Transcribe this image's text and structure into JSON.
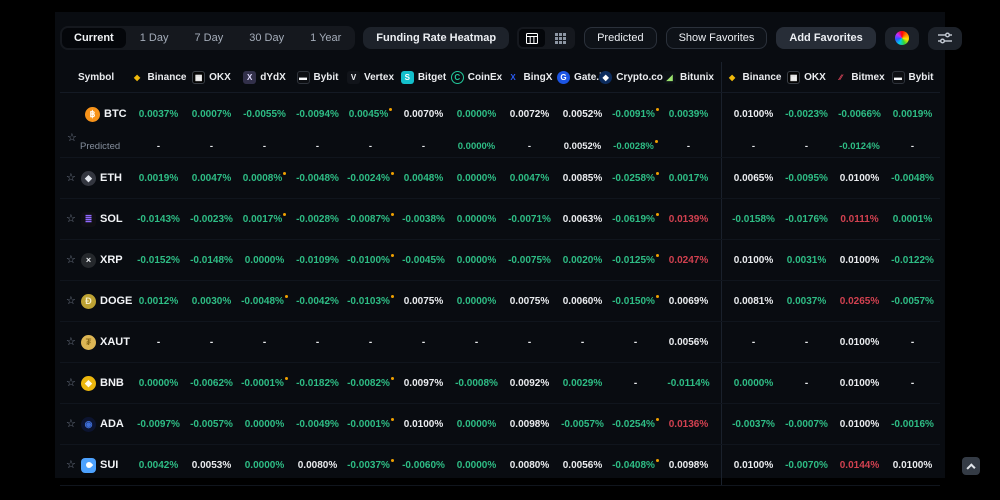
{
  "toolbar": {
    "tabs": [
      "Current",
      "1 Day",
      "7 Day",
      "30 Day",
      "1 Year"
    ],
    "active_tab": "Current",
    "heatmap_button": "Funding Rate Heatmap",
    "predicted_button": "Predicted",
    "show_favorites_button": "Show Favorites",
    "add_favorites_button": "Add Favorites"
  },
  "colors": {
    "positive": "#2ebd85",
    "negative": "#d24150",
    "neutral": "#eaecef",
    "marker": "#f0a000",
    "accent_yellow": "#F0B90B"
  },
  "table": {
    "symbol_header": "Symbol",
    "predicted_label": "Predicted",
    "exchange_groups": [
      [
        {
          "name": "Binance",
          "icon": {
            "ch": "◆",
            "fg": "#F0B90B"
          }
        },
        {
          "name": "OKX",
          "icon": {
            "ch": "▦",
            "fg": "#ffffff",
            "bg": "#050505",
            "border": "#3a3f46",
            "shape": "square"
          }
        },
        {
          "name": "dYdX",
          "icon": {
            "ch": "X",
            "fg": "#e2dcff",
            "bg": "#32304a",
            "shape": "square"
          }
        },
        {
          "name": "Bybit",
          "icon": {
            "ch": "▬",
            "fg": "#f6f7f9",
            "bg": "#0d0f13",
            "border": "#2e333b",
            "shape": "square"
          }
        },
        {
          "name": "Vertex",
          "icon": {
            "ch": "V",
            "fg": "#f2f4f7",
            "bg": "#11141a",
            "shape": "square"
          }
        },
        {
          "name": "Bitget",
          "icon": {
            "ch": "S",
            "fg": "#ffffff",
            "bg": "#13bfcb",
            "shape": "square"
          }
        },
        {
          "name": "CoinEx",
          "icon": {
            "ch": "C",
            "fg": "#23c99b",
            "border": "#23c99b",
            "shape": "circle"
          }
        },
        {
          "name": "BingX",
          "icon": {
            "ch": "X",
            "fg": "#2b5cf4"
          }
        },
        {
          "name": "Gate.io",
          "icon": {
            "ch": "G",
            "fg": "#ffffff",
            "bg": "#1c55e3",
            "shape": "circle"
          }
        },
        {
          "name": "Crypto.com",
          "icon": {
            "ch": "◆",
            "fg": "#ffffff",
            "bg": "#0c2c5e",
            "shape": "circle"
          }
        },
        {
          "name": "Bitunix",
          "icon": {
            "ch": "◢",
            "fg": "#9be36e",
            "bg": "#0c1116",
            "shape": "square"
          }
        }
      ],
      [
        {
          "name": "Binance",
          "icon": {
            "ch": "◆",
            "fg": "#F0B90B"
          }
        },
        {
          "name": "OKX",
          "icon": {
            "ch": "▦",
            "fg": "#ffffff",
            "bg": "#050505",
            "border": "#3a3f46",
            "shape": "square"
          }
        },
        {
          "name": "Bitmex",
          "icon": {
            "ch": "∕∕",
            "fg": "#e8485e"
          }
        },
        {
          "name": "Bybit",
          "icon": {
            "ch": "▬",
            "fg": "#f6f7f9",
            "bg": "#0d0f13",
            "border": "#2e333b",
            "shape": "square"
          }
        }
      ]
    ],
    "rows": [
      {
        "symbol": "BTC",
        "icon": {
          "ch": "฿",
          "fg": "#ffffff",
          "bg": "#f7931a",
          "shape": "circle"
        },
        "cells": [
          {
            "t": "0.0037%",
            "c": "g"
          },
          {
            "t": "0.0007%",
            "c": "g"
          },
          {
            "t": "-0.0055%",
            "c": "g"
          },
          {
            "t": "-0.0094%",
            "c": "g"
          },
          {
            "t": "0.0045%",
            "c": "g",
            "m": true
          },
          {
            "t": "0.0070%",
            "c": "w"
          },
          {
            "t": "0.0000%",
            "c": "g"
          },
          {
            "t": "0.0072%",
            "c": "w"
          },
          {
            "t": "0.0052%",
            "c": "w"
          },
          {
            "t": "-0.0091%",
            "c": "g",
            "m": true
          },
          {
            "t": "0.0039%",
            "c": "g"
          },
          {
            "t": "0.0100%",
            "c": "w"
          },
          {
            "t": "-0.0023%",
            "c": "g"
          },
          {
            "t": "-0.0066%",
            "c": "g"
          },
          {
            "t": "0.0019%",
            "c": "g"
          }
        ],
        "predicted": [
          {
            "t": "-",
            "c": "w"
          },
          {
            "t": "-",
            "c": "w"
          },
          {
            "t": "-",
            "c": "w"
          },
          {
            "t": "-",
            "c": "w"
          },
          {
            "t": "-",
            "c": "w"
          },
          {
            "t": "-",
            "c": "w"
          },
          {
            "t": "0.0000%",
            "c": "g"
          },
          {
            "t": "-",
            "c": "w"
          },
          {
            "t": "0.0052%",
            "c": "w"
          },
          {
            "t": "-0.0028%",
            "c": "g",
            "m": true
          },
          {
            "t": "-",
            "c": "w"
          },
          {
            "t": "-",
            "c": "w"
          },
          {
            "t": "-",
            "c": "w"
          },
          {
            "t": "-0.0124%",
            "c": "g"
          },
          {
            "t": "-",
            "c": "w"
          }
        ]
      },
      {
        "symbol": "ETH",
        "icon": {
          "ch": "◆",
          "fg": "#e3e7ee",
          "bg": "#33363f",
          "shape": "circle"
        },
        "cells": [
          {
            "t": "0.0019%",
            "c": "g"
          },
          {
            "t": "0.0047%",
            "c": "g"
          },
          {
            "t": "0.0008%",
            "c": "g",
            "m": true
          },
          {
            "t": "-0.0048%",
            "c": "g"
          },
          {
            "t": "-0.0024%",
            "c": "g",
            "m": true
          },
          {
            "t": "0.0048%",
            "c": "g"
          },
          {
            "t": "0.0000%",
            "c": "g"
          },
          {
            "t": "0.0047%",
            "c": "g"
          },
          {
            "t": "0.0085%",
            "c": "w"
          },
          {
            "t": "-0.0258%",
            "c": "g",
            "m": true
          },
          {
            "t": "0.0017%",
            "c": "g"
          },
          {
            "t": "0.0065%",
            "c": "w"
          },
          {
            "t": "-0.0095%",
            "c": "g"
          },
          {
            "t": "0.0100%",
            "c": "w"
          },
          {
            "t": "-0.0048%",
            "c": "g"
          }
        ]
      },
      {
        "symbol": "SOL",
        "icon": {
          "ch": "≣",
          "fg": "#9068ff",
          "bg": "#101014",
          "shape": "square"
        },
        "cells": [
          {
            "t": "-0.0143%",
            "c": "g"
          },
          {
            "t": "-0.0023%",
            "c": "g"
          },
          {
            "t": "0.0017%",
            "c": "g",
            "m": true
          },
          {
            "t": "-0.0028%",
            "c": "g"
          },
          {
            "t": "-0.0087%",
            "c": "g",
            "m": true
          },
          {
            "t": "-0.0038%",
            "c": "g"
          },
          {
            "t": "0.0000%",
            "c": "g"
          },
          {
            "t": "-0.0071%",
            "c": "g"
          },
          {
            "t": "0.0063%",
            "c": "w"
          },
          {
            "t": "-0.0619%",
            "c": "g",
            "m": true
          },
          {
            "t": "0.0139%",
            "c": "r"
          },
          {
            "t": "-0.0158%",
            "c": "g"
          },
          {
            "t": "-0.0176%",
            "c": "g"
          },
          {
            "t": "0.0111%",
            "c": "r"
          },
          {
            "t": "0.0001%",
            "c": "g"
          }
        ]
      },
      {
        "symbol": "XRP",
        "icon": {
          "ch": "×",
          "fg": "#eef0f3",
          "bg": "#25282c",
          "shape": "circle"
        },
        "cells": [
          {
            "t": "-0.0152%",
            "c": "g"
          },
          {
            "t": "-0.0148%",
            "c": "g"
          },
          {
            "t": "0.0000%",
            "c": "g"
          },
          {
            "t": "-0.0109%",
            "c": "g"
          },
          {
            "t": "-0.0100%",
            "c": "g",
            "m": true
          },
          {
            "t": "-0.0045%",
            "c": "g"
          },
          {
            "t": "0.0000%",
            "c": "g"
          },
          {
            "t": "-0.0075%",
            "c": "g"
          },
          {
            "t": "0.0020%",
            "c": "g"
          },
          {
            "t": "-0.0125%",
            "c": "g",
            "m": true
          },
          {
            "t": "0.0247%",
            "c": "r"
          },
          {
            "t": "0.0100%",
            "c": "w"
          },
          {
            "t": "0.0031%",
            "c": "g"
          },
          {
            "t": "0.0100%",
            "c": "w"
          },
          {
            "t": "-0.0122%",
            "c": "g"
          }
        ]
      },
      {
        "symbol": "DOGE",
        "icon": {
          "ch": "Ð",
          "fg": "#f7eec7",
          "bg": "#bda233",
          "shape": "circle"
        },
        "cells": [
          {
            "t": "0.0012%",
            "c": "g"
          },
          {
            "t": "0.0030%",
            "c": "g"
          },
          {
            "t": "-0.0048%",
            "c": "g",
            "m": true
          },
          {
            "t": "-0.0042%",
            "c": "g"
          },
          {
            "t": "-0.0103%",
            "c": "g",
            "m": true
          },
          {
            "t": "0.0075%",
            "c": "w"
          },
          {
            "t": "0.0000%",
            "c": "g"
          },
          {
            "t": "0.0075%",
            "c": "w"
          },
          {
            "t": "0.0060%",
            "c": "w"
          },
          {
            "t": "-0.0150%",
            "c": "g",
            "m": true
          },
          {
            "t": "0.0069%",
            "c": "w"
          },
          {
            "t": "0.0081%",
            "c": "w"
          },
          {
            "t": "0.0037%",
            "c": "g"
          },
          {
            "t": "0.0265%",
            "c": "r"
          },
          {
            "t": "-0.0057%",
            "c": "g"
          }
        ]
      },
      {
        "symbol": "XAUT",
        "icon": {
          "ch": "₮",
          "fg": "#8a6a1a",
          "bg": "#ddb654",
          "shape": "circle"
        },
        "cells": [
          {
            "t": "-",
            "c": "w"
          },
          {
            "t": "-",
            "c": "w"
          },
          {
            "t": "-",
            "c": "w"
          },
          {
            "t": "-",
            "c": "w"
          },
          {
            "t": "-",
            "c": "w"
          },
          {
            "t": "-",
            "c": "w"
          },
          {
            "t": "-",
            "c": "w"
          },
          {
            "t": "-",
            "c": "w"
          },
          {
            "t": "-",
            "c": "w"
          },
          {
            "t": "-",
            "c": "w"
          },
          {
            "t": "0.0056%",
            "c": "w"
          },
          {
            "t": "-",
            "c": "w"
          },
          {
            "t": "-",
            "c": "w"
          },
          {
            "t": "0.0100%",
            "c": "w"
          },
          {
            "t": "-",
            "c": "w"
          }
        ]
      },
      {
        "symbol": "BNB",
        "icon": {
          "ch": "◆",
          "fg": "#fffbe8",
          "bg": "#ecb70d",
          "shape": "circle"
        },
        "cells": [
          {
            "t": "0.0000%",
            "c": "g"
          },
          {
            "t": "-0.0062%",
            "c": "g"
          },
          {
            "t": "-0.0001%",
            "c": "g",
            "m": true
          },
          {
            "t": "-0.0182%",
            "c": "g"
          },
          {
            "t": "-0.0082%",
            "c": "g",
            "m": true
          },
          {
            "t": "0.0097%",
            "c": "w"
          },
          {
            "t": "-0.0008%",
            "c": "g"
          },
          {
            "t": "0.0092%",
            "c": "w"
          },
          {
            "t": "0.0029%",
            "c": "g"
          },
          {
            "t": "-",
            "c": "w"
          },
          {
            "t": "-0.0114%",
            "c": "g"
          },
          {
            "t": "0.0000%",
            "c": "g"
          },
          {
            "t": "-",
            "c": "w"
          },
          {
            "t": "0.0100%",
            "c": "w"
          },
          {
            "t": "-",
            "c": "w"
          }
        ]
      },
      {
        "symbol": "ADA",
        "icon": {
          "ch": "◉",
          "fg": "#3f6fd8",
          "bg": "#0c1430",
          "shape": "circle"
        },
        "cells": [
          {
            "t": "-0.0097%",
            "c": "g"
          },
          {
            "t": "-0.0057%",
            "c": "g"
          },
          {
            "t": "0.0000%",
            "c": "g"
          },
          {
            "t": "-0.0049%",
            "c": "g"
          },
          {
            "t": "-0.0001%",
            "c": "g",
            "m": true
          },
          {
            "t": "0.0100%",
            "c": "w"
          },
          {
            "t": "0.0000%",
            "c": "g"
          },
          {
            "t": "0.0098%",
            "c": "w"
          },
          {
            "t": "-0.0057%",
            "c": "g"
          },
          {
            "t": "-0.0254%",
            "c": "g",
            "m": true
          },
          {
            "t": "0.0136%",
            "c": "r"
          },
          {
            "t": "-0.0037%",
            "c": "g"
          },
          {
            "t": "-0.0007%",
            "c": "g"
          },
          {
            "t": "0.0100%",
            "c": "w"
          },
          {
            "t": "-0.0016%",
            "c": "g"
          }
        ]
      },
      {
        "symbol": "SUI",
        "icon": {
          "ch": "drop",
          "fg": "#ffffff",
          "bg": "#4da2ff",
          "shape": "square"
        },
        "cells": [
          {
            "t": "0.0042%",
            "c": "g"
          },
          {
            "t": "0.0053%",
            "c": "w"
          },
          {
            "t": "0.0000%",
            "c": "g"
          },
          {
            "t": "0.0080%",
            "c": "w"
          },
          {
            "t": "-0.0037%",
            "c": "g",
            "m": true
          },
          {
            "t": "-0.0060%",
            "c": "g"
          },
          {
            "t": "0.0000%",
            "c": "g"
          },
          {
            "t": "0.0080%",
            "c": "w"
          },
          {
            "t": "0.0056%",
            "c": "w"
          },
          {
            "t": "-0.0408%",
            "c": "g",
            "m": true
          },
          {
            "t": "0.0098%",
            "c": "w"
          },
          {
            "t": "0.0100%",
            "c": "w"
          },
          {
            "t": "-0.0070%",
            "c": "g"
          },
          {
            "t": "0.0144%",
            "c": "r"
          },
          {
            "t": "0.0100%",
            "c": "w"
          }
        ]
      }
    ]
  }
}
